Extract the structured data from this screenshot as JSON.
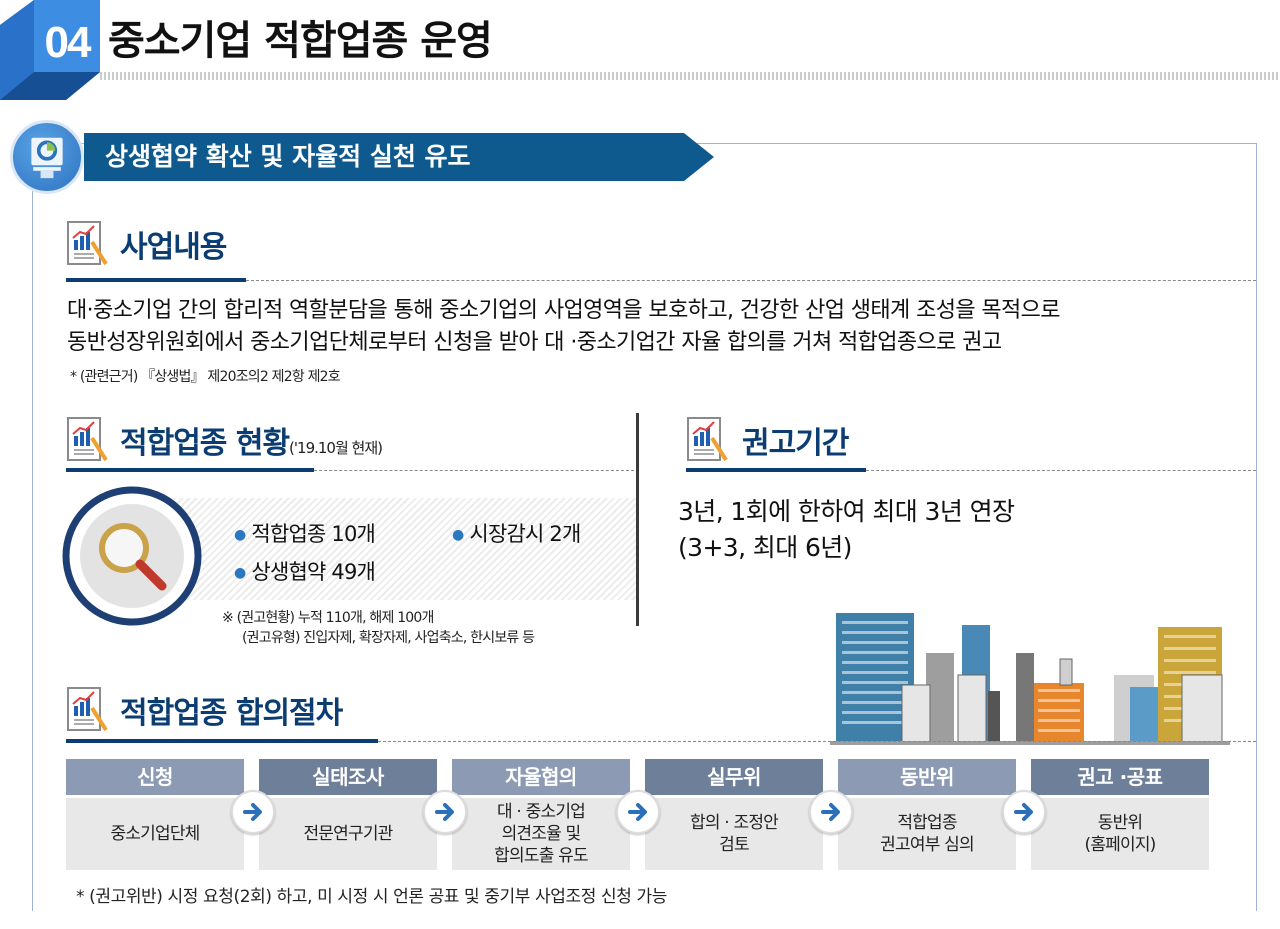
{
  "header": {
    "chapter_number": "04",
    "title": "중소기업 적합업종 운영",
    "colors": {
      "cube": "#2f7fd8",
      "cube_dark": "#1c5fb0"
    }
  },
  "banner": {
    "text": "상생협약 확산 및 자율적 실천 유도",
    "color": "#0e5a8f"
  },
  "business": {
    "heading": "사업내용",
    "lines": [
      "대·중소기업 간의 합리적 역할분담을 통해 중소기업의 사업영역을 보호하고, 건강한 산업 생태계 조성을 목적으로",
      "동반성장위원회에서 중소기업단체로부터 신청을 받아 대 ·중소기업간 자율 합의를 거쳐 적합업종으로 권고"
    ],
    "note": "* (관련근거) 『상생법』 제20조의2 제2항 제2호"
  },
  "status": {
    "heading": "적합업종 현황",
    "heading_sub": "('19.10월 현재)",
    "items": [
      "적합업종 10개",
      "시장감시 2개",
      "상생협약 49개"
    ],
    "note_line1": "※ (권고현황) 누적 110개, 해제 100개",
    "note_line2": "(권고유형) 진입자제, 확장자제, 사업축소, 한시보류 등"
  },
  "period": {
    "heading": "권고기간",
    "line1": "3년, 1회에 한하여 최대 3년 연장",
    "line2": "(3+3, 최대 6년)"
  },
  "procedure": {
    "heading": "적합업종 합의절차",
    "steps": [
      {
        "title": "신청",
        "detail": "중소기업단체"
      },
      {
        "title": "실태조사",
        "detail": "전문연구기관"
      },
      {
        "title": "자율협의",
        "detail": "대 · 중소기업\n의견조율 및\n합의도출 유도"
      },
      {
        "title": "실무위",
        "detail": "합의 · 조정안\n검토"
      },
      {
        "title": "동반위",
        "detail": "적합업종\n권고여부 심의"
      },
      {
        "title": "권고 ·공표",
        "detail": "동반위\n(홈페이지)"
      }
    ],
    "step_colors": [
      "#8c9bb3",
      "#6e7f9a",
      "#8c9bb3",
      "#6e7f9a",
      "#8c9bb3",
      "#6e7f9a"
    ],
    "arrow_color": "#2a6fb8"
  },
  "footnote": "* (권고위반) 시정 요청(2회) 하고, 미 시정 시 언론 공표 및 중기부 사업조정 신청 가능"
}
